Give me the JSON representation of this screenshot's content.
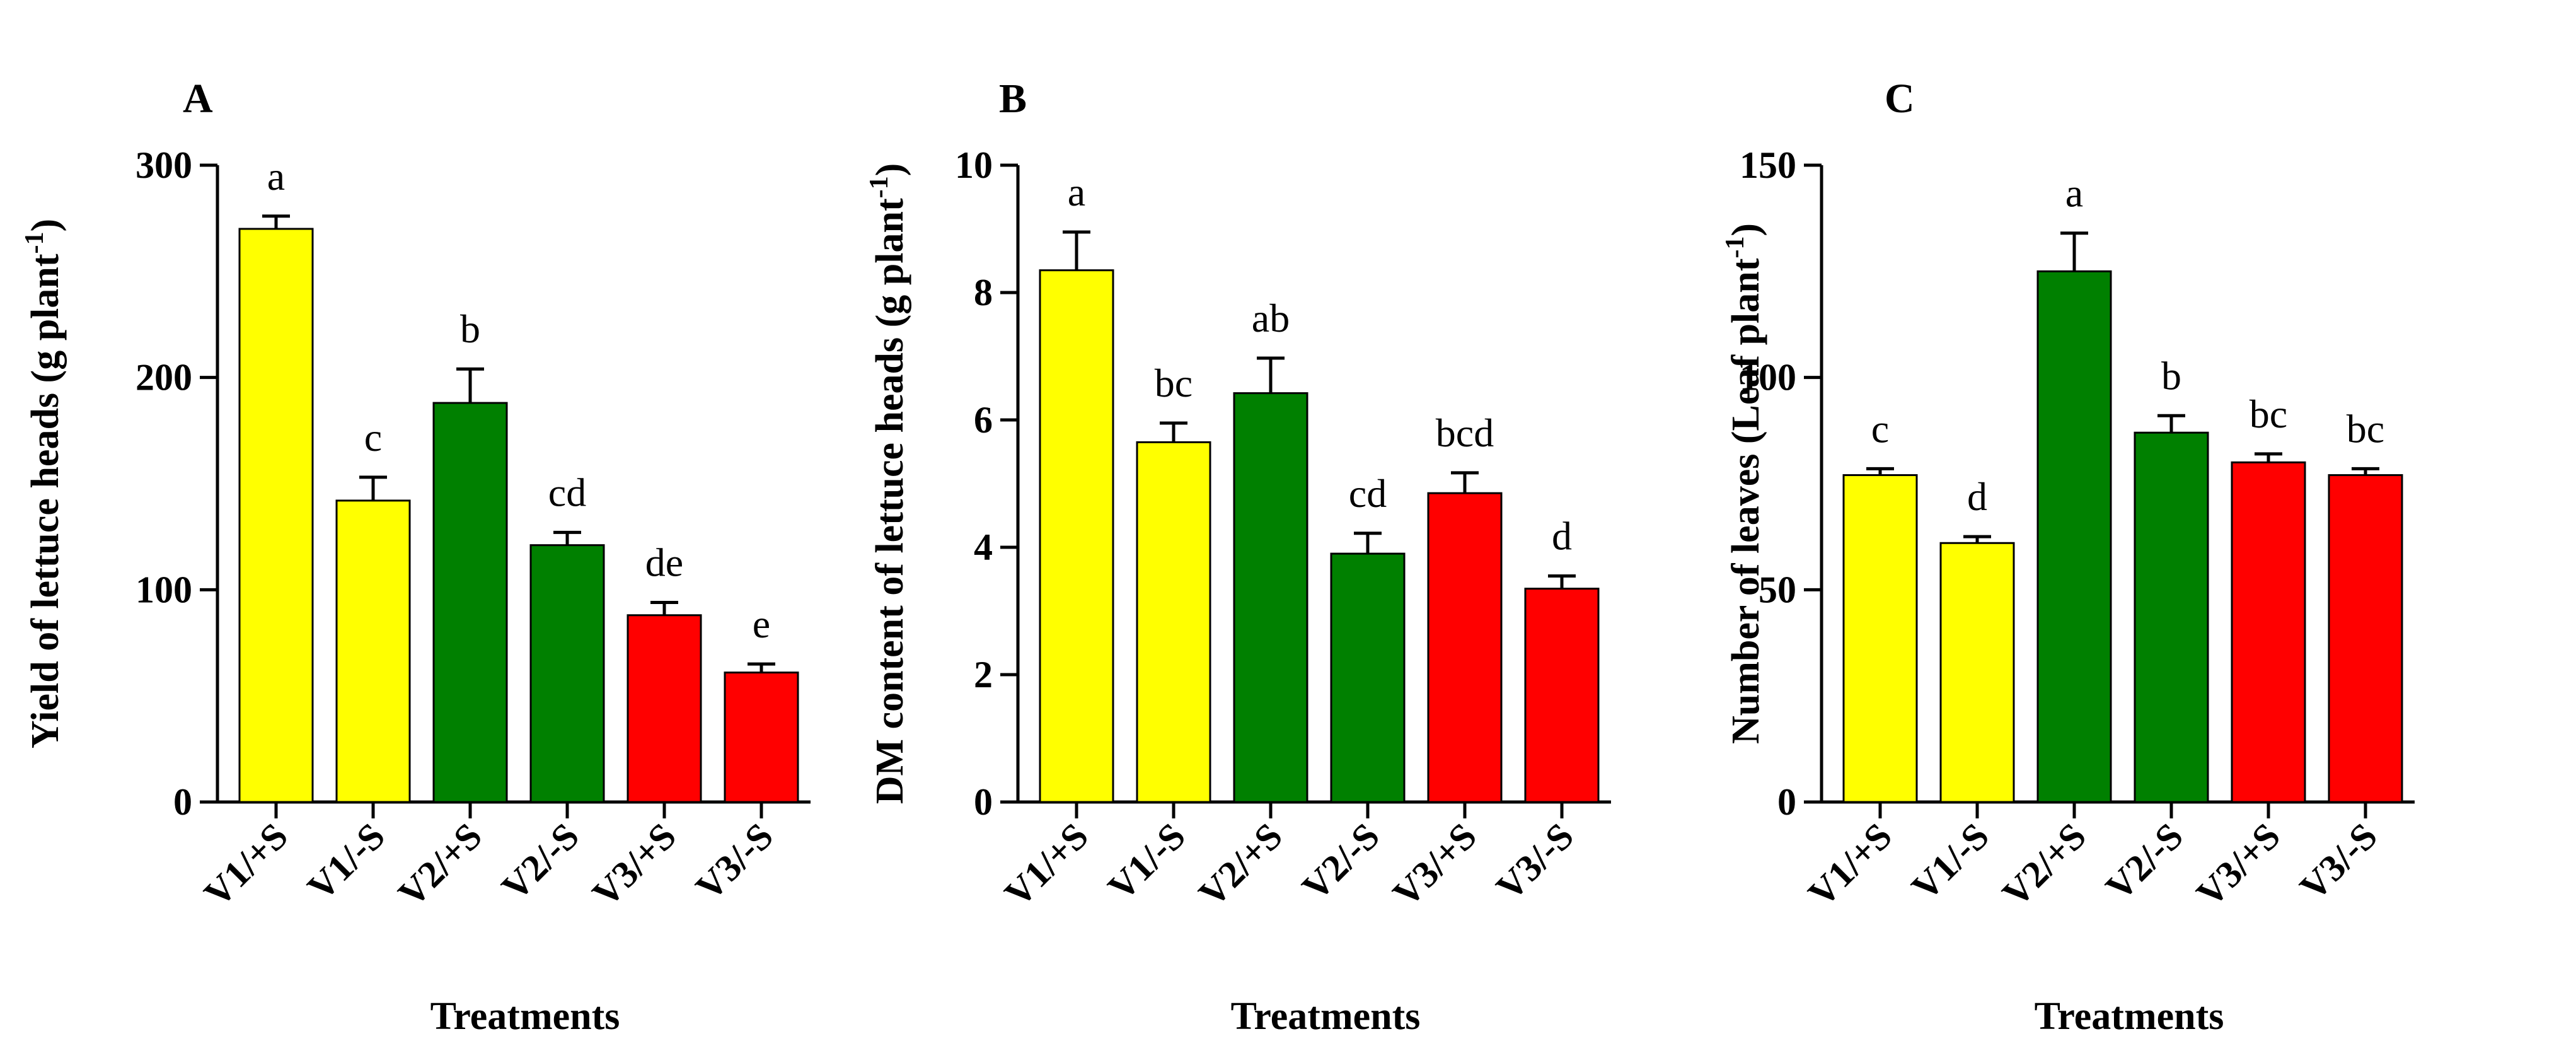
{
  "colors": {
    "V1": "#ffff00",
    "V2": "#008000",
    "V3": "#ff0000"
  },
  "chart_data": [
    {
      "type": "bar",
      "panel": "A",
      "title": "",
      "xlabel": "Treatments",
      "ylabel": "Yield of lettuce heads (g plant",
      "ylabel_sup": "-1",
      "ylabel_close": ")",
      "ylim": [
        0,
        300
      ],
      "yticks": [
        0,
        100,
        200,
        300
      ],
      "categories": [
        "V1/+S",
        "V1/-S",
        "V2/+S",
        "V2/-S",
        "V3/+S",
        "V3/-S"
      ],
      "values": [
        270,
        142,
        188,
        121,
        88,
        61
      ],
      "errors": [
        6,
        11,
        16,
        6,
        6,
        4
      ],
      "letters": [
        "a",
        "c",
        "b",
        "cd",
        "de",
        "e"
      ],
      "color_keys": [
        "V1",
        "V1",
        "V2",
        "V2",
        "V3",
        "V3"
      ]
    },
    {
      "type": "bar",
      "panel": "B",
      "title": "",
      "xlabel": "Treatments",
      "ylabel": "DM content of lettuce heads (g plant",
      "ylabel_sup": "-1",
      "ylabel_close": ")",
      "ylim": [
        0,
        10
      ],
      "yticks": [
        0,
        2,
        4,
        6,
        8,
        10
      ],
      "categories": [
        "V1/+S",
        "V1/-S",
        "V2/+S",
        "V2/-S",
        "V3/+S",
        "V3/-S"
      ],
      "values": [
        8.35,
        5.65,
        6.42,
        3.9,
        4.85,
        3.35
      ],
      "errors": [
        0.6,
        0.3,
        0.55,
        0.32,
        0.32,
        0.2
      ],
      "letters": [
        "a",
        "bc",
        "ab",
        "cd",
        "bcd",
        "d"
      ],
      "color_keys": [
        "V1",
        "V1",
        "V2",
        "V2",
        "V3",
        "V3"
      ]
    },
    {
      "type": "bar",
      "panel": "C",
      "title": "",
      "xlabel": "Treatments",
      "ylabel": "Number of leaves (Leaf plant",
      "ylabel_sup": "-1",
      "ylabel_close": ")",
      "ylim": [
        0,
        150
      ],
      "yticks": [
        0,
        50,
        100,
        150
      ],
      "categories": [
        "V1/+S",
        "V1/-S",
        "V2/+S",
        "V2/-S",
        "V3/+S",
        "V3/-S"
      ],
      "values": [
        77,
        61,
        125,
        87,
        80,
        77
      ],
      "errors": [
        1.5,
        1.5,
        9,
        4,
        2,
        1.5
      ],
      "letters": [
        "c",
        "d",
        "a",
        "b",
        "bc",
        "bc"
      ],
      "color_keys": [
        "V1",
        "V1",
        "V2",
        "V2",
        "V3",
        "V3"
      ]
    }
  ]
}
